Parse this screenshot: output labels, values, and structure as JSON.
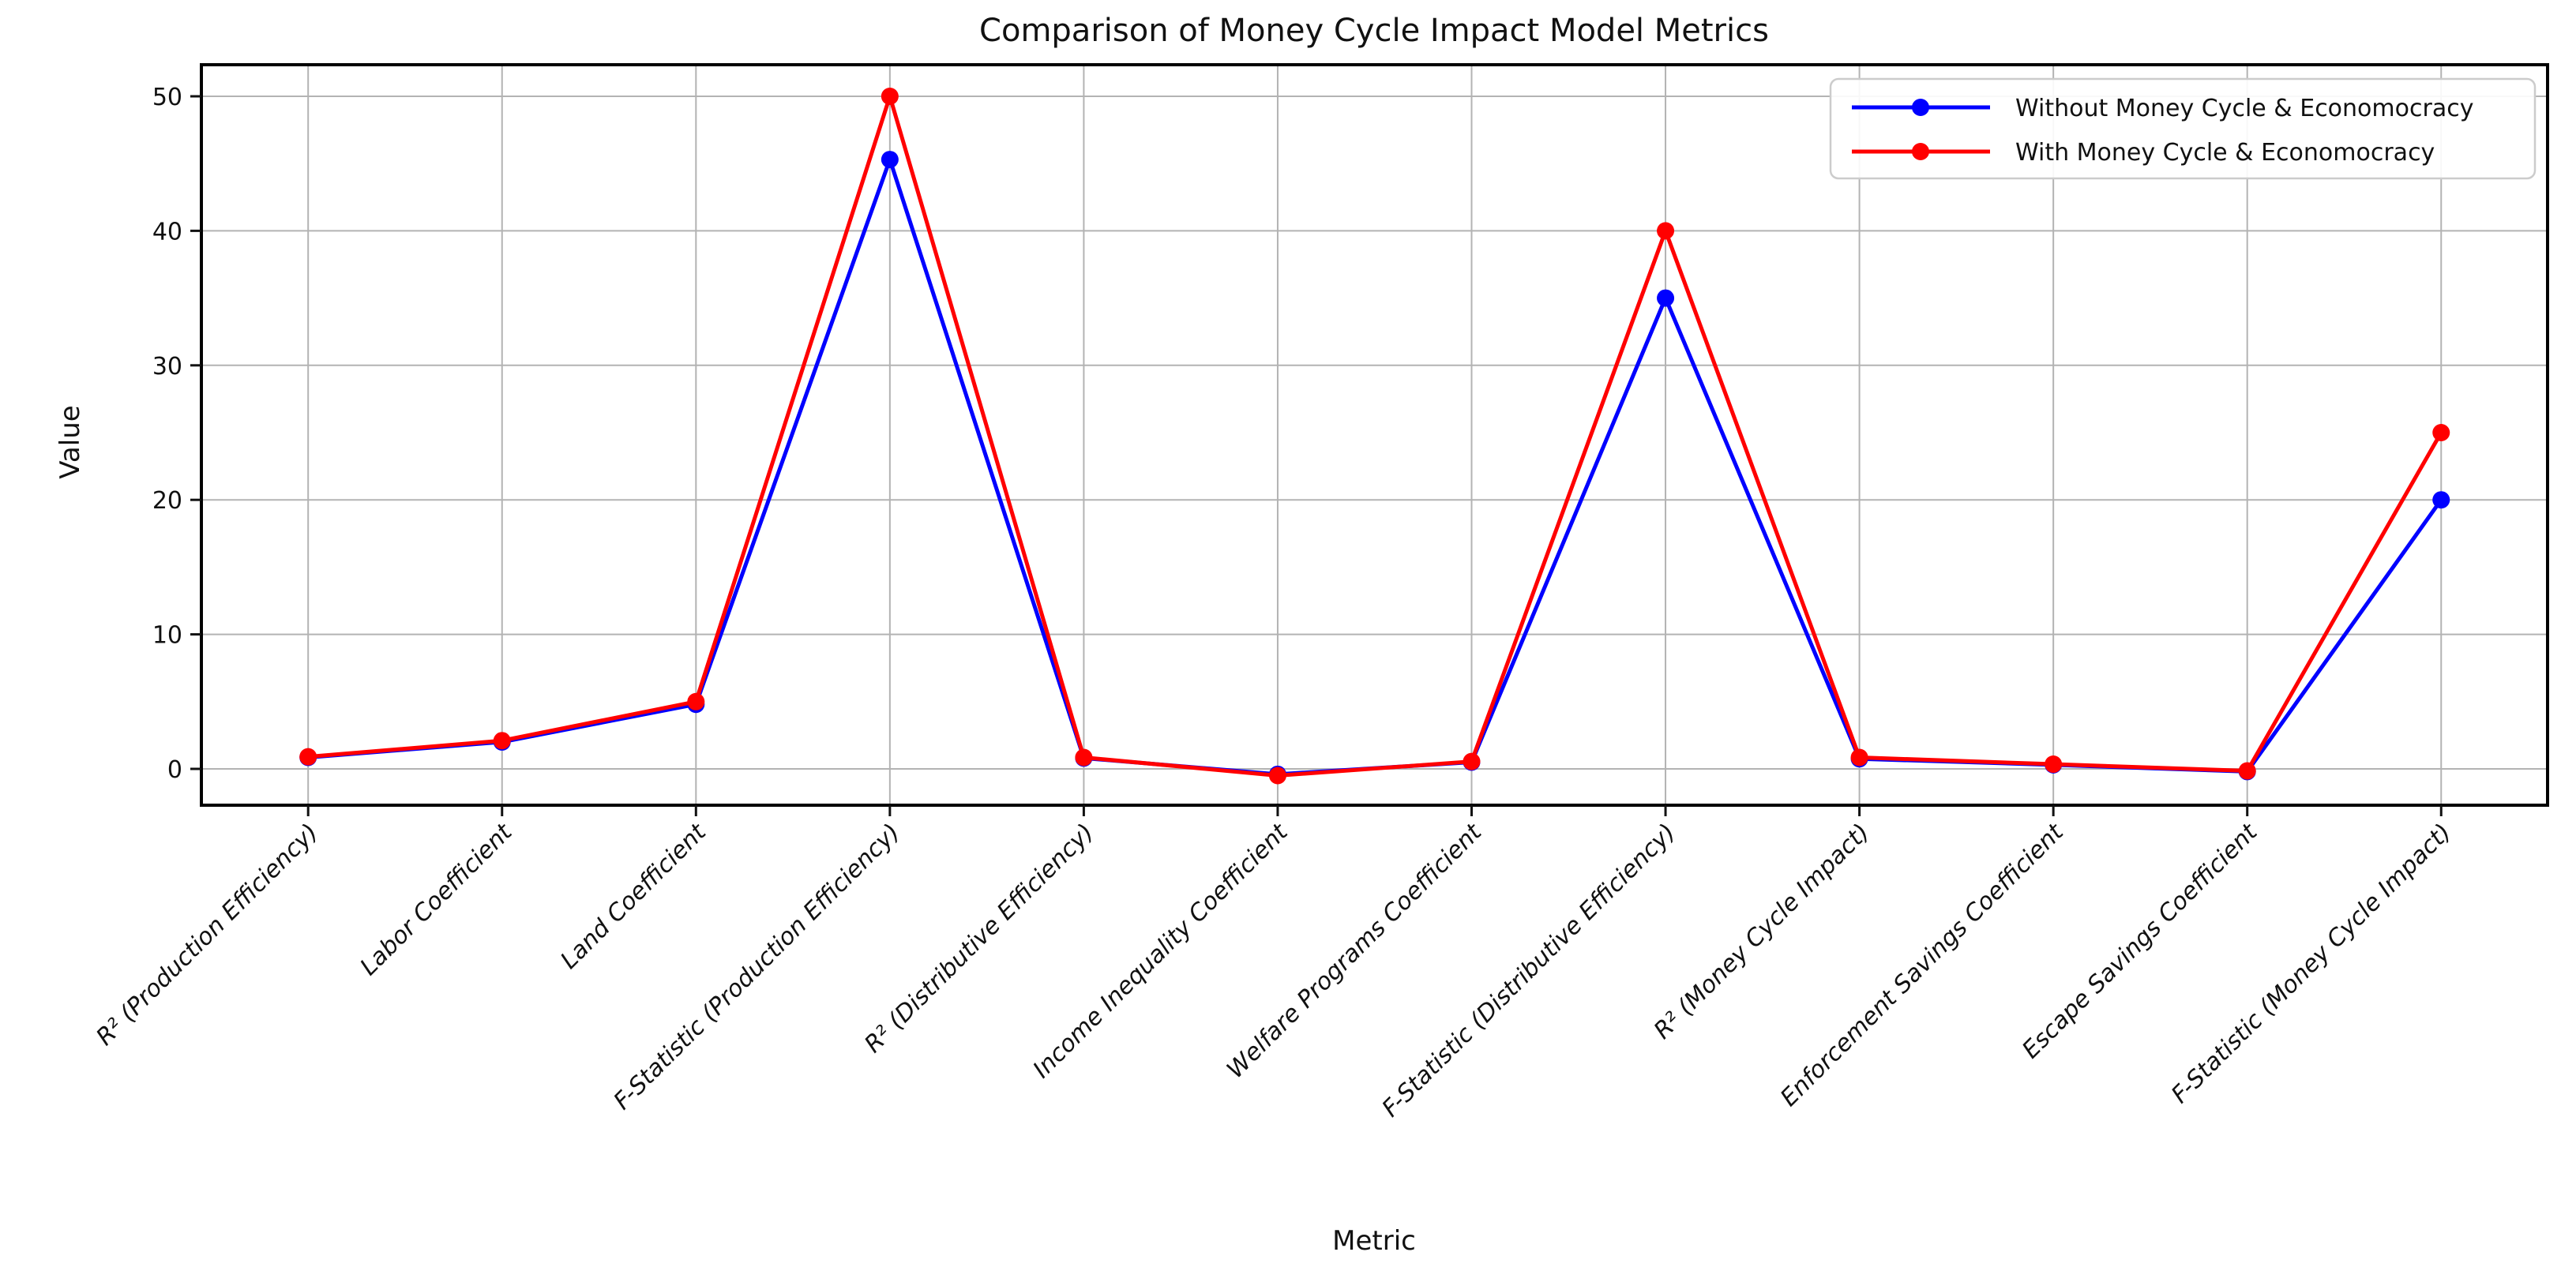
{
  "chart_data": {
    "type": "line",
    "title": "Comparison of Money Cycle Impact Model Metrics",
    "xlabel": "Metric",
    "ylabel": "Value",
    "categories": [
      "R² (Production Efficiency)",
      "Labor Coefficient",
      "Land Coefficient",
      "F-Statistic (Production Efficiency)",
      "R² (Distributive Efficiency)",
      "Income Inequality Coefficient",
      "Welfare Programs Coefficient",
      "F-Statistic (Distributive Efficiency)",
      "R² (Money Cycle Impact)",
      "Enforcement Savings Coefficient",
      "Escape Savings Coefficient",
      "F-Statistic (Money Cycle Impact)"
    ],
    "series": [
      {
        "name": "Without Money Cycle & Economocracy",
        "color": "#0000ff",
        "values": [
          0.85,
          2.0,
          4.8,
          45.3,
          0.8,
          -0.4,
          0.5,
          35.0,
          0.75,
          0.3,
          -0.2,
          20.0
        ]
      },
      {
        "name": "With Money Cycle & Economocracy",
        "color": "#ff0000",
        "values": [
          0.9,
          2.1,
          5.0,
          50.0,
          0.85,
          -0.5,
          0.55,
          40.0,
          0.85,
          0.35,
          -0.15,
          25.0
        ]
      }
    ],
    "y_ticks": [
      0,
      10,
      20,
      30,
      40,
      50
    ],
    "ylim": [
      -2.7,
      52.4
    ],
    "grid": true,
    "legend_position": "upper right",
    "marker": "circle",
    "tick_label_rotation": 45,
    "grid_color": "#b3b3b3",
    "spine_color": "#000000"
  }
}
